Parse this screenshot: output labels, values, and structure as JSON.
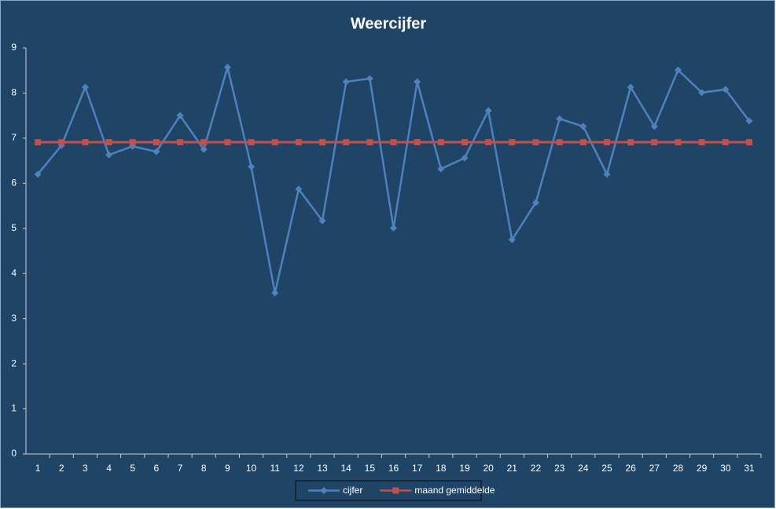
{
  "chart_data": {
    "type": "line",
    "title": "Weercijfer",
    "categories": [
      "1",
      "2",
      "3",
      "4",
      "5",
      "6",
      "7",
      "8",
      "9",
      "10",
      "11",
      "12",
      "13",
      "14",
      "15",
      "16",
      "17",
      "18",
      "19",
      "20",
      "21",
      "22",
      "23",
      "24",
      "25",
      "26",
      "27",
      "28",
      "29",
      "30",
      "31"
    ],
    "series": [
      {
        "name": "cijfer",
        "color": "#4f81bd",
        "marker": "diamond",
        "values": [
          6.2,
          6.84,
          8.13,
          6.63,
          6.82,
          6.7,
          7.5,
          6.75,
          8.57,
          6.37,
          3.57,
          5.87,
          5.17,
          8.25,
          8.32,
          5.01,
          8.25,
          6.32,
          6.56,
          7.61,
          4.75,
          5.57,
          7.43,
          7.26,
          6.2,
          8.13,
          7.26,
          8.51,
          8.01,
          8.08,
          7.38
        ]
      },
      {
        "name": "maand gemiddelde",
        "color": "#c0504d",
        "marker": "square",
        "values": [
          6.91,
          6.91,
          6.91,
          6.91,
          6.91,
          6.91,
          6.91,
          6.91,
          6.91,
          6.91,
          6.91,
          6.91,
          6.91,
          6.91,
          6.91,
          6.91,
          6.91,
          6.91,
          6.91,
          6.91,
          6.91,
          6.91,
          6.91,
          6.91,
          6.91,
          6.91,
          6.91,
          6.91,
          6.91,
          6.91,
          6.91
        ]
      }
    ],
    "ylim": [
      0,
      9
    ],
    "yticks": [
      0,
      1,
      2,
      3,
      4,
      5,
      6,
      7,
      8,
      9
    ],
    "grid": false,
    "legend": "bottom"
  }
}
